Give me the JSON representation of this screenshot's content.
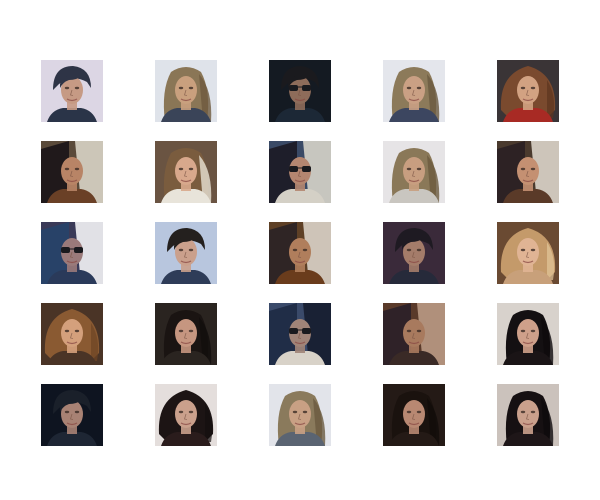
{
  "tiles": [
    {
      "bg": "#dcd6e4",
      "hair": "#2e3446",
      "hairSide": "#20283a",
      "skin": "#c69a84",
      "shirt": "#2a3448",
      "shades": false,
      "hairStyle": "short"
    },
    {
      "bg": "#dfe3ea",
      "hair": "#8a7656",
      "hairSide": "#6e5a3e",
      "skin": "#c9a07e",
      "shirt": "#3a4458",
      "shades": false,
      "hairStyle": "long"
    },
    {
      "bg": "#141a22",
      "hair": "#1a1a1e",
      "hairSide": "#121216",
      "skin": "#8e6c5a",
      "shirt": "#1c2836",
      "shades": true,
      "hairStyle": "short"
    },
    {
      "bg": "#e4e6ec",
      "hair": "#8c7a5a",
      "hairSide": "#6a5a40",
      "skin": "#caa084",
      "shirt": "#3c4660",
      "shades": false,
      "hairStyle": "long"
    },
    {
      "bg": "#3a3436",
      "hair": "#7a4a2e",
      "hairSide": "#5c3420",
      "skin": "#d2a282",
      "shirt": "#a82a24",
      "shades": false,
      "hairStyle": "wide"
    },
    {
      "bg": "#5a4a3a",
      "hair": "#1a1418",
      "hairSide": "#e0dccf",
      "skin": "#b88466",
      "shirt": "#6a4026",
      "shades": false,
      "hairStyle": "split"
    },
    {
      "bg": "#6a5442",
      "hair": "#7a5c3e",
      "hairSide": "#e8e2d4",
      "skin": "#d8a88c",
      "shirt": "#e8e4da",
      "shades": false,
      "hairStyle": "long"
    },
    {
      "bg": "#3a4a66",
      "hair": "#1c1a24",
      "hairSide": "#e0dccf",
      "skin": "#b48670",
      "shirt": "#d4d0c6",
      "shades": true,
      "hairStyle": "split"
    },
    {
      "bg": "#e6e4e6",
      "hair": "#8a7858",
      "hairSide": "#6c5a3e",
      "skin": "#c89e80",
      "shirt": "#c9c6c0",
      "shades": false,
      "hairStyle": "long"
    },
    {
      "bg": "#4a3a2e",
      "hair": "#2a2024",
      "hairSide": "#e4ded2",
      "skin": "#c49072",
      "shirt": "#5a3a28",
      "shades": false,
      "hairStyle": "split"
    },
    {
      "bg": "#3a3a58",
      "hair": "#27446a",
      "hairSide": "#ffffff",
      "skin": "#9a7a7a",
      "shirt": "#2a3a5a",
      "shades": true,
      "hairStyle": "split"
    },
    {
      "bg": "#b8c6de",
      "hair": "#24201e",
      "hairSide": "#7c8aa4",
      "skin": "#caa08c",
      "shirt": "#2e3c58",
      "shades": false,
      "hairStyle": "short"
    },
    {
      "bg": "#5e4026",
      "hair": "#2a2226",
      "hairSide": "#e2dcd2",
      "skin": "#b07e5c",
      "shirt": "#6a3c1c",
      "shades": false,
      "hairStyle": "split"
    },
    {
      "bg": "#3a2a3a",
      "hair": "#1e1a22",
      "hairSide": "#aa3030",
      "skin": "#a47c6a",
      "shirt": "#262a3a",
      "shades": false,
      "hairStyle": "short"
    },
    {
      "bg": "#6a4a32",
      "hair": "#c49a6a",
      "hairSide": "#e2c69a",
      "skin": "#e0b494",
      "shirt": "#c8a07a",
      "shades": false,
      "hairStyle": "wide"
    },
    {
      "bg": "#4a3426",
      "hair": "#8a5a32",
      "hairSide": "#6e4424",
      "skin": "#d4a07c",
      "shirt": "#4a3426",
      "shades": false,
      "hairStyle": "wide"
    },
    {
      "bg": "#2a2420",
      "hair": "#1a1412",
      "hairSide": "#120e0c",
      "skin": "#c69680",
      "shirt": "#2a2420",
      "shades": false,
      "hairStyle": "long"
    },
    {
      "bg": "#3a4a6a",
      "hair": "#1e2a44",
      "hairSide": "#141a2a",
      "skin": "#a08478",
      "shirt": "#d8d2c8",
      "shades": true,
      "hairStyle": "split"
    },
    {
      "bg": "#5a3a2a",
      "hair": "#2a2028",
      "hairSide": "#c0a08a",
      "skin": "#a87a5e",
      "shirt": "#3a2a26",
      "shades": false,
      "hairStyle": "split"
    },
    {
      "bg": "#d8d2cc",
      "hair": "#141012",
      "hairSide": "#0e0a0c",
      "skin": "#cea08a",
      "shirt": "#1a1416",
      "shades": false,
      "hairStyle": "long"
    },
    {
      "bg": "#0e1420",
      "hair": "#1a202a",
      "hairSide": "#121824",
      "skin": "#a88274",
      "shirt": "#1e2634",
      "shades": false,
      "hairStyle": "short"
    },
    {
      "bg": "#e4dedc",
      "hair": "#1c1414",
      "hairSide": "#140e0e",
      "skin": "#caa08c",
      "shirt": "#2a1c1c",
      "shades": false,
      "hairStyle": "wide"
    },
    {
      "bg": "#e2e4ea",
      "hair": "#8a7a5c",
      "hairSide": "#6a5a40",
      "skin": "#c8a084",
      "shirt": "#5a6472",
      "shades": false,
      "hairStyle": "long"
    },
    {
      "bg": "#241a16",
      "hair": "#1a120e",
      "hairSide": "#120c0a",
      "skin": "#b88872",
      "shirt": "#241a16",
      "shades": false,
      "hairStyle": "long"
    },
    {
      "bg": "#cbc2bc",
      "hair": "#161012",
      "hairSide": "#0e0a0c",
      "skin": "#caa08c",
      "shirt": "#1e1618",
      "shades": false,
      "hairStyle": "long"
    }
  ]
}
